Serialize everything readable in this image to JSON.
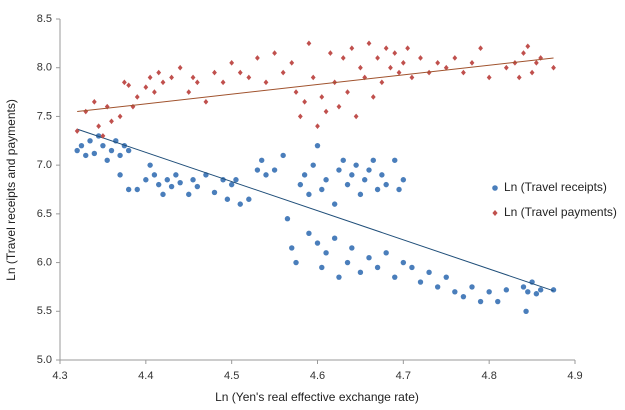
{
  "chart_data": {
    "type": "scatter",
    "x_label": "Ln (Yen's real effective exchange rate)",
    "y_label": "Ln (Travel receipts and payments)",
    "xlim": [
      4.3,
      4.9
    ],
    "xticks": [
      4.3,
      4.4,
      4.5,
      4.6,
      4.7,
      4.8,
      4.9
    ],
    "ylim": [
      5,
      8.5
    ],
    "yticks": [
      {
        "value": 5,
        "label": "5.0"
      },
      5.5,
      {
        "value": 6,
        "label": "6.0"
      },
      6.5,
      {
        "value": 7,
        "label": "7.0"
      },
      7.5,
      {
        "value": 8,
        "label": "8.0"
      },
      8.5
    ],
    "legend": "right",
    "series": [
      {
        "name": "Ln (Travel receipts)",
        "color": "#4a7ebb",
        "marker": "circle",
        "trend_color": "#1f4e79",
        "trend": {
          "x": [
            4.32,
            4.875
          ],
          "y": [
            7.37,
            5.71
          ]
        },
        "x": [
          4.32,
          4.325,
          4.33,
          4.335,
          4.34,
          4.345,
          4.35,
          4.355,
          4.36,
          4.365,
          4.37,
          4.375,
          4.38,
          4.38,
          4.37,
          4.39,
          4.4,
          4.405,
          4.41,
          4.415,
          4.42,
          4.425,
          4.43,
          4.435,
          4.44,
          4.45,
          4.455,
          4.46,
          4.47,
          4.48,
          4.49,
          4.495,
          4.5,
          4.505,
          4.51,
          4.52,
          4.53,
          4.535,
          4.54,
          4.55,
          4.56,
          4.565,
          4.57,
          4.575,
          4.58,
          4.585,
          4.59,
          4.595,
          4.6,
          4.605,
          4.61,
          4.62,
          4.625,
          4.63,
          4.635,
          4.64,
          4.645,
          4.65,
          4.655,
          4.66,
          4.665,
          4.67,
          4.675,
          4.68,
          4.69,
          4.695,
          4.7,
          4.59,
          4.6,
          4.605,
          4.61,
          4.62,
          4.625,
          4.635,
          4.64,
          4.65,
          4.66,
          4.67,
          4.68,
          4.69,
          4.7,
          4.71,
          4.72,
          4.73,
          4.74,
          4.75,
          4.76,
          4.77,
          4.78,
          4.79,
          4.8,
          4.81,
          4.82,
          4.84,
          4.845,
          4.85,
          4.855,
          4.86,
          4.843,
          4.875
        ],
        "values": [
          7.15,
          7.2,
          7.1,
          7.25,
          7.12,
          7.3,
          7.2,
          7.05,
          7.15,
          7.25,
          7.1,
          7.2,
          7.15,
          6.75,
          6.9,
          6.75,
          6.85,
          7.0,
          6.9,
          6.8,
          6.7,
          6.85,
          6.78,
          6.9,
          6.82,
          6.7,
          6.85,
          6.78,
          6.9,
          6.72,
          6.85,
          6.65,
          6.8,
          6.85,
          6.6,
          6.65,
          6.95,
          7.05,
          6.9,
          6.95,
          7.1,
          6.45,
          6.15,
          6.0,
          6.8,
          6.9,
          6.7,
          7.0,
          7.2,
          6.75,
          6.85,
          6.6,
          6.95,
          7.05,
          6.8,
          6.9,
          7.0,
          6.7,
          6.85,
          6.95,
          7.05,
          6.75,
          6.9,
          6.8,
          7.05,
          6.75,
          6.85,
          6.3,
          6.2,
          5.95,
          6.1,
          6.25,
          5.85,
          6.0,
          6.15,
          5.9,
          6.05,
          5.95,
          6.1,
          5.85,
          6.0,
          5.95,
          5.8,
          5.9,
          5.75,
          5.85,
          5.7,
          5.65,
          5.75,
          5.6,
          5.7,
          5.6,
          5.72,
          5.75,
          5.7,
          5.8,
          5.68,
          5.72,
          5.5,
          5.72
        ]
      },
      {
        "name": "Ln (Travel payments)",
        "color": "#c0504d",
        "marker": "diamond",
        "trend_color": "#a0522d",
        "trend": {
          "x": [
            4.32,
            4.875
          ],
          "y": [
            7.55,
            8.1
          ]
        },
        "x": [
          4.32,
          4.33,
          4.34,
          4.345,
          4.35,
          4.355,
          4.36,
          4.37,
          4.375,
          4.38,
          4.385,
          4.39,
          4.4,
          4.405,
          4.41,
          4.415,
          4.42,
          4.43,
          4.44,
          4.45,
          4.455,
          4.46,
          4.47,
          4.48,
          4.49,
          4.5,
          4.51,
          4.52,
          4.53,
          4.54,
          4.55,
          4.56,
          4.57,
          4.575,
          4.58,
          4.585,
          4.59,
          4.595,
          4.6,
          4.605,
          4.61,
          4.615,
          4.62,
          4.625,
          4.63,
          4.635,
          4.64,
          4.645,
          4.65,
          4.655,
          4.66,
          4.665,
          4.67,
          4.675,
          4.68,
          4.685,
          4.69,
          4.695,
          4.7,
          4.705,
          4.71,
          4.72,
          4.73,
          4.74,
          4.75,
          4.76,
          4.77,
          4.78,
          4.79,
          4.8,
          4.82,
          4.83,
          4.835,
          4.84,
          4.845,
          4.85,
          4.855,
          4.86,
          4.875
        ],
        "values": [
          7.35,
          7.55,
          7.65,
          7.4,
          7.3,
          7.6,
          7.45,
          7.5,
          7.85,
          7.82,
          7.6,
          7.7,
          7.8,
          7.9,
          7.75,
          7.95,
          7.85,
          7.9,
          8.0,
          7.75,
          7.9,
          7.85,
          7.65,
          7.95,
          7.85,
          8.05,
          7.95,
          7.9,
          8.1,
          7.85,
          8.15,
          7.95,
          8.05,
          7.75,
          7.5,
          7.65,
          8.25,
          7.9,
          7.4,
          7.7,
          7.55,
          8.15,
          7.85,
          7.6,
          8.1,
          7.75,
          8.2,
          7.5,
          8.0,
          7.9,
          8.25,
          7.7,
          8.1,
          7.85,
          8.2,
          8.0,
          8.15,
          7.95,
          8.05,
          8.2,
          7.9,
          8.1,
          7.95,
          8.05,
          8.0,
          8.1,
          7.95,
          8.05,
          8.2,
          7.9,
          8.0,
          8.05,
          7.9,
          8.15,
          8.22,
          7.95,
          8.05,
          8.1,
          8.0
        ]
      }
    ]
  }
}
